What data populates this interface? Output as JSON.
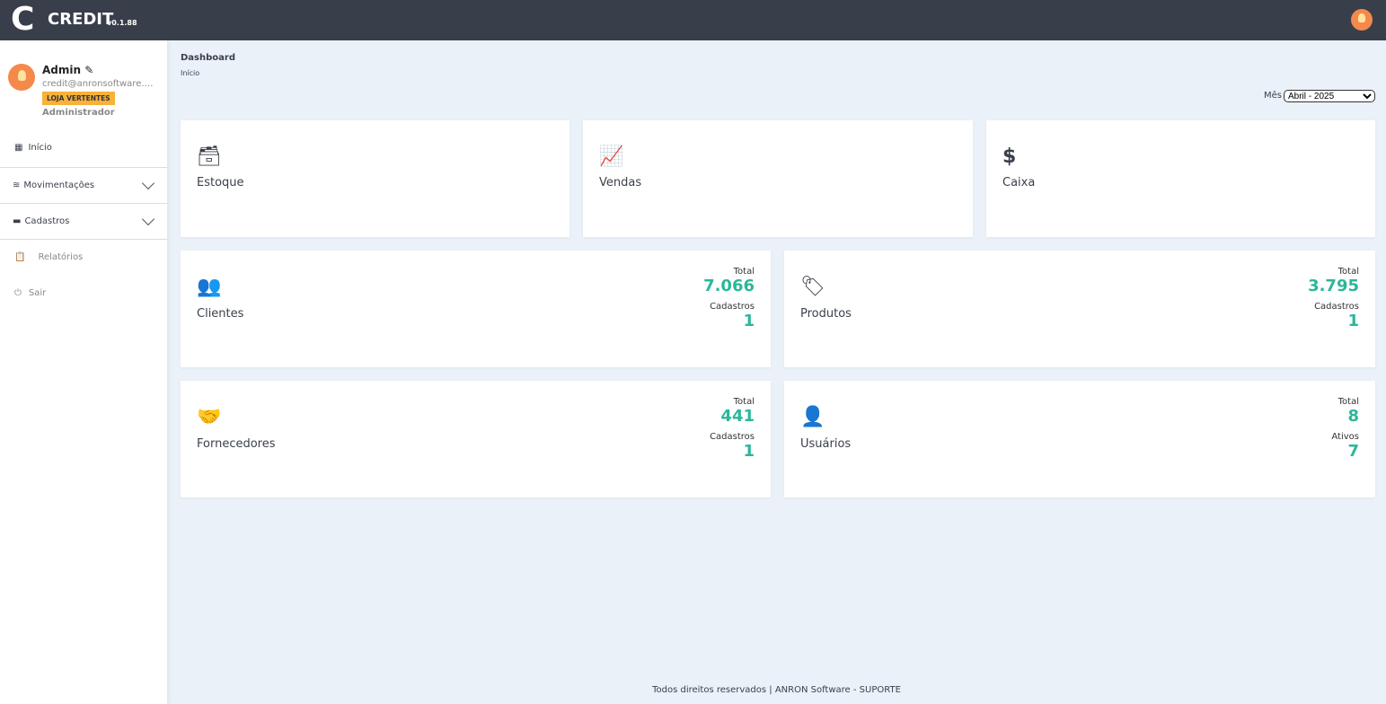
{
  "app": {
    "logo": "C",
    "title": "CREDIT",
    "version": "v0.1.88"
  },
  "user": {
    "name": "Admin",
    "email": "credit@anronsoftware.com",
    "store": "LOJA VERTENTES",
    "role": "Administrador"
  },
  "nav": [
    {
      "label": "Início",
      "icon": "dashboard-icon"
    },
    {
      "label": "Movimentações",
      "icon": "database-icon"
    },
    {
      "label": "Cadastros",
      "icon": "archive-icon"
    },
    {
      "label": "Relatórios",
      "icon": "clipboard-icon"
    },
    {
      "label": "Sair",
      "icon": "power-icon"
    }
  ],
  "breadcrumb": {
    "title": "Dashboard",
    "sub": "Início"
  },
  "filter": {
    "label": "Mês",
    "value": "Abril - 2025"
  },
  "cards_top": [
    {
      "title": "Estoque",
      "icon": "archive-icon"
    },
    {
      "title": "Vendas",
      "icon": "chart-line-icon"
    },
    {
      "title": "Caixa",
      "icon": "dollar-icon"
    }
  ],
  "cards": [
    {
      "title": "Clientes",
      "icon": "users-icon",
      "l1": "Total",
      "v1": "7.066",
      "l2": "Cadastros",
      "v2": "1"
    },
    {
      "title": "Produtos",
      "icon": "tag-icon",
      "l1": "Total",
      "v1": "3.795",
      "l2": "Cadastros",
      "v2": "1"
    },
    {
      "title": "Fornecedores",
      "icon": "handshake-icon",
      "l1": "Total",
      "v1": "441",
      "l2": "Cadastros",
      "v2": "1"
    },
    {
      "title": "Usuários",
      "icon": "user-icon",
      "l1": "Total",
      "v1": "8",
      "l2": "Ativos",
      "v2": "7"
    }
  ],
  "footer": "Todos direitos reservados | ANRON Software - SUPORTE"
}
